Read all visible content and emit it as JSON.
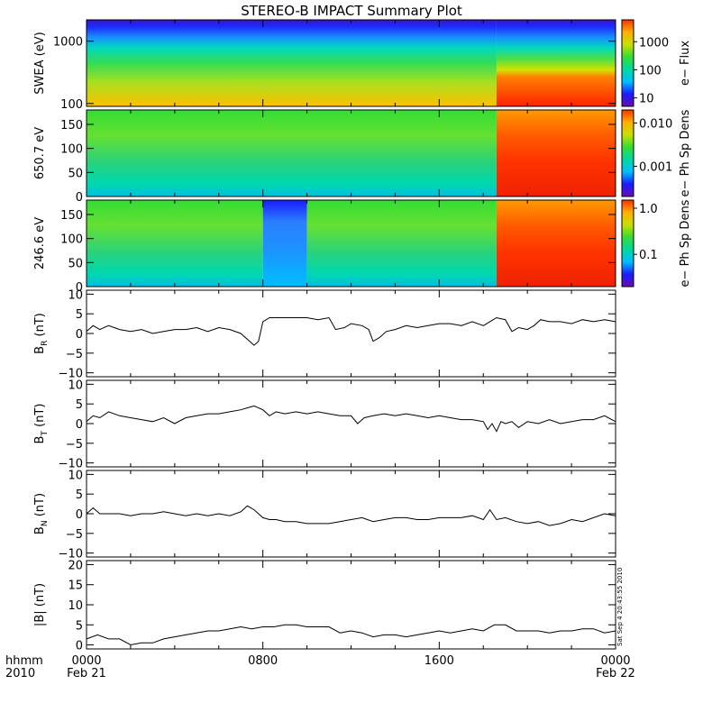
{
  "figure": {
    "title": "STEREO-B IMPACT Summary Plot",
    "timestamp_stamp": "Sat Sep  4 20:43:55 2010"
  },
  "x_axis": {
    "label_line1": "hhmm",
    "label_line2": "2010",
    "ticks": [
      {
        "hour": 0,
        "label": "0000",
        "sublabel": "Feb 21"
      },
      {
        "hour": 8,
        "label": "0800",
        "sublabel": ""
      },
      {
        "hour": 16,
        "label": "1600",
        "sublabel": ""
      },
      {
        "hour": 24,
        "label": "0000",
        "sublabel": "Feb 22"
      }
    ],
    "range_hours": [
      0,
      24
    ]
  },
  "colors": {
    "axes": "#000000",
    "line": "#000000",
    "spectrogram_scale": [
      "#6a0dad",
      "#1a1aff",
      "#00bfff",
      "#00d8a0",
      "#33dd33",
      "#c8e000",
      "#ffb000",
      "#ff3000"
    ]
  },
  "chart_data": [
    {
      "type": "heatmap",
      "panel": "swea",
      "ylabel": "SWEA (eV)",
      "yscale": "log",
      "ylim": [
        90,
        2200
      ],
      "yticks": [
        {
          "value": 100,
          "label": "100"
        },
        {
          "value": 1000,
          "label": "1000"
        }
      ],
      "colorbar": {
        "label": "e− Flux",
        "scale": "log",
        "range": [
          5,
          6000
        ],
        "ticks": [
          {
            "value": 10,
            "label": "10"
          },
          {
            "value": 100,
            "label": "100"
          },
          {
            "value": 1000,
            "label": "1000"
          }
        ]
      },
      "regimes": [
        {
          "hour_start": 0,
          "hour_end": 18.6,
          "level": "moderate"
        },
        {
          "hour_start": 18.6,
          "hour_end": 24,
          "level": "high"
        }
      ]
    },
    {
      "type": "heatmap",
      "panel": "pad650",
      "ylabel": "650.7 eV",
      "ylim": [
        0,
        180
      ],
      "yticks": [
        {
          "value": 0,
          "label": "0"
        },
        {
          "value": 50,
          "label": "50"
        },
        {
          "value": 100,
          "label": "100"
        },
        {
          "value": 150,
          "label": "150"
        }
      ],
      "colorbar": {
        "label": "e− Ph Sp Dens",
        "scale": "log",
        "range": [
          0.0002,
          0.02
        ],
        "ticks": [
          {
            "value": 0.001,
            "label": "0.001"
          },
          {
            "value": 0.01,
            "label": "0.010"
          }
        ]
      },
      "regimes": [
        {
          "hour_start": 0,
          "hour_end": 18.6,
          "level": "moderate"
        },
        {
          "hour_start": 18.6,
          "hour_end": 24,
          "level": "high"
        }
      ]
    },
    {
      "type": "heatmap",
      "panel": "pad246",
      "ylabel": "246.6 eV",
      "ylim": [
        0,
        180
      ],
      "yticks": [
        {
          "value": 0,
          "label": "0"
        },
        {
          "value": 50,
          "label": "50"
        },
        {
          "value": 100,
          "label": "100"
        },
        {
          "value": 150,
          "label": "150"
        }
      ],
      "colorbar": {
        "label": "e− Ph Sp Dens",
        "scale": "log",
        "range": [
          0.02,
          1.5
        ],
        "ticks": [
          {
            "value": 0.1,
            "label": "0.1"
          },
          {
            "value": 1.0,
            "label": "1.0"
          }
        ]
      },
      "regimes": [
        {
          "hour_start": 0,
          "hour_end": 8,
          "level": "moderate"
        },
        {
          "hour_start": 8,
          "hour_end": 10,
          "level": "low"
        },
        {
          "hour_start": 10,
          "hour_end": 18.6,
          "level": "moderate"
        },
        {
          "hour_start": 18.6,
          "hour_end": 24,
          "level": "high"
        }
      ]
    },
    {
      "type": "line",
      "panel": "br",
      "ylabel_main": "B",
      "ylabel_sub": "R",
      "ylabel_unit": " (nT)",
      "ylim": [
        -11,
        11
      ],
      "yticks": [
        {
          "value": -10,
          "label": "−10"
        },
        {
          "value": -5,
          "label": "−5"
        },
        {
          "value": 0,
          "label": "0"
        },
        {
          "value": 5,
          "label": "5"
        },
        {
          "value": 10,
          "label": "10"
        }
      ],
      "x": [
        0,
        0.3,
        0.6,
        1,
        1.5,
        2,
        2.5,
        3,
        3.5,
        4,
        4.5,
        5,
        5.5,
        6,
        6.5,
        7,
        7.3,
        7.6,
        7.8,
        8,
        8.3,
        8.6,
        9,
        9.5,
        10,
        10.5,
        11,
        11.3,
        11.7,
        12,
        12.5,
        12.8,
        13,
        13.3,
        13.6,
        14,
        14.5,
        15,
        15.5,
        16,
        16.5,
        17,
        17.5,
        18,
        18.3,
        18.6,
        19,
        19.3,
        19.6,
        20,
        20.3,
        20.6,
        21,
        21.5,
        22,
        22.5,
        23,
        23.5,
        24
      ],
      "y": [
        0.5,
        2,
        1,
        2,
        1,
        0.5,
        1,
        0,
        0.5,
        1,
        1,
        1.5,
        0.5,
        1.5,
        1,
        0,
        -1.5,
        -3,
        -2,
        3,
        4,
        4,
        4,
        4,
        4,
        3.5,
        4,
        1,
        1.5,
        2.5,
        2,
        1,
        -2,
        -1,
        0.5,
        1,
        2,
        1.5,
        2,
        2.5,
        2.5,
        2,
        3,
        2,
        3,
        4,
        3.5,
        0.5,
        1.5,
        1,
        2,
        3.5,
        3,
        3,
        2.5,
        3.5,
        3,
        3.5,
        3
      ]
    },
    {
      "type": "line",
      "panel": "bt",
      "ylabel_main": "B",
      "ylabel_sub": "T",
      "ylabel_unit": " (nT)",
      "ylim": [
        -11,
        11
      ],
      "yticks": [
        {
          "value": -10,
          "label": "−10"
        },
        {
          "value": -5,
          "label": "−5"
        },
        {
          "value": 0,
          "label": "0"
        },
        {
          "value": 5,
          "label": "5"
        },
        {
          "value": 10,
          "label": "10"
        }
      ],
      "x": [
        0,
        0.3,
        0.6,
        1,
        1.5,
        2,
        2.5,
        3,
        3.5,
        4,
        4.5,
        5,
        5.5,
        6,
        6.5,
        7,
        7.3,
        7.6,
        8,
        8.3,
        8.6,
        9,
        9.5,
        10,
        10.5,
        11,
        11.5,
        12,
        12.3,
        12.6,
        13,
        13.5,
        14,
        14.5,
        15,
        15.5,
        16,
        16.5,
        17,
        17.5,
        18,
        18.2,
        18.4,
        18.6,
        18.8,
        19,
        19.3,
        19.6,
        20,
        20.5,
        21,
        21.5,
        22,
        22.5,
        23,
        23.5,
        24
      ],
      "y": [
        0.5,
        2,
        1.5,
        3,
        2,
        1.5,
        1,
        0.5,
        1.5,
        0,
        1.5,
        2,
        2.5,
        2.5,
        3,
        3.5,
        4,
        4.5,
        3.5,
        2,
        3,
        2.5,
        3,
        2.5,
        3,
        2.5,
        2,
        2,
        0,
        1.5,
        2,
        2.5,
        2,
        2.5,
        2,
        1.5,
        2,
        1.5,
        1,
        1,
        0.5,
        -1.5,
        0,
        -2,
        0.5,
        0,
        0.5,
        -1,
        0.5,
        0,
        1,
        0,
        0.5,
        1,
        1,
        2,
        0.5
      ]
    },
    {
      "type": "line",
      "panel": "bn",
      "ylabel_main": "B",
      "ylabel_sub": "N",
      "ylabel_unit": " (nT)",
      "ylim": [
        -11,
        11
      ],
      "yticks": [
        {
          "value": -10,
          "label": "−10"
        },
        {
          "value": -5,
          "label": "−5"
        },
        {
          "value": 0,
          "label": "0"
        },
        {
          "value": 5,
          "label": "5"
        },
        {
          "value": 10,
          "label": "10"
        }
      ],
      "x": [
        0,
        0.3,
        0.6,
        1,
        1.5,
        2,
        2.5,
        3,
        3.5,
        4,
        4.5,
        5,
        5.5,
        6,
        6.5,
        7,
        7.3,
        7.6,
        8,
        8.3,
        8.6,
        9,
        9.5,
        10,
        10.5,
        11,
        11.5,
        12,
        12.5,
        13,
        13.5,
        14,
        14.5,
        15,
        15.5,
        16,
        16.5,
        17,
        17.5,
        18,
        18.3,
        18.6,
        19,
        19.5,
        20,
        20.5,
        21,
        21.5,
        22,
        22.5,
        23,
        23.5,
        24
      ],
      "y": [
        0,
        1.5,
        0,
        0,
        0,
        -0.5,
        0,
        0,
        0.5,
        0,
        -0.5,
        0,
        -0.5,
        0,
        -0.5,
        0.5,
        2,
        1,
        -1,
        -1.5,
        -1.5,
        -2,
        -2,
        -2.5,
        -2.5,
        -2.5,
        -2,
        -1.5,
        -1,
        -2,
        -1.5,
        -1,
        -1,
        -1.5,
        -1.5,
        -1,
        -1,
        -1,
        -0.5,
        -1.5,
        1,
        -1.5,
        -1,
        -2,
        -2.5,
        -2,
        -3,
        -2.5,
        -1.5,
        -2,
        -1,
        0,
        -0.5
      ]
    },
    {
      "type": "line",
      "panel": "bmag",
      "ylabel": "|B| (nT)",
      "ylim": [
        -1,
        21
      ],
      "yticks": [
        {
          "value": 0,
          "label": "0"
        },
        {
          "value": 5,
          "label": "5"
        },
        {
          "value": 10,
          "label": "10"
        },
        {
          "value": 15,
          "label": "15"
        },
        {
          "value": 20,
          "label": "20"
        }
      ],
      "x": [
        0,
        0.5,
        1,
        1.5,
        2,
        2.5,
        3,
        3.5,
        4,
        4.5,
        5,
        5.5,
        6,
        6.5,
        7,
        7.5,
        8,
        8.5,
        9,
        9.5,
        10,
        10.5,
        11,
        11.5,
        12,
        12.5,
        13,
        13.5,
        14,
        14.5,
        15,
        15.5,
        16,
        16.5,
        17,
        17.5,
        18,
        18.5,
        19,
        19.5,
        20,
        20.5,
        21,
        21.5,
        22,
        22.5,
        23,
        23.5,
        24
      ],
      "y": [
        1.5,
        2.5,
        1.5,
        1.5,
        0,
        0.5,
        0.5,
        1.5,
        2,
        2.5,
        3,
        3.5,
        3.5,
        4,
        4.5,
        4,
        4.5,
        4.5,
        5,
        5,
        4.5,
        4.5,
        4.5,
        3,
        3.5,
        3,
        2,
        2.5,
        2.5,
        2,
        2.5,
        3,
        3.5,
        3,
        3.5,
        4,
        3.5,
        5,
        5,
        3.5,
        3.5,
        3.5,
        3,
        3.5,
        3.5,
        4,
        4,
        3,
        3.5
      ]
    }
  ]
}
